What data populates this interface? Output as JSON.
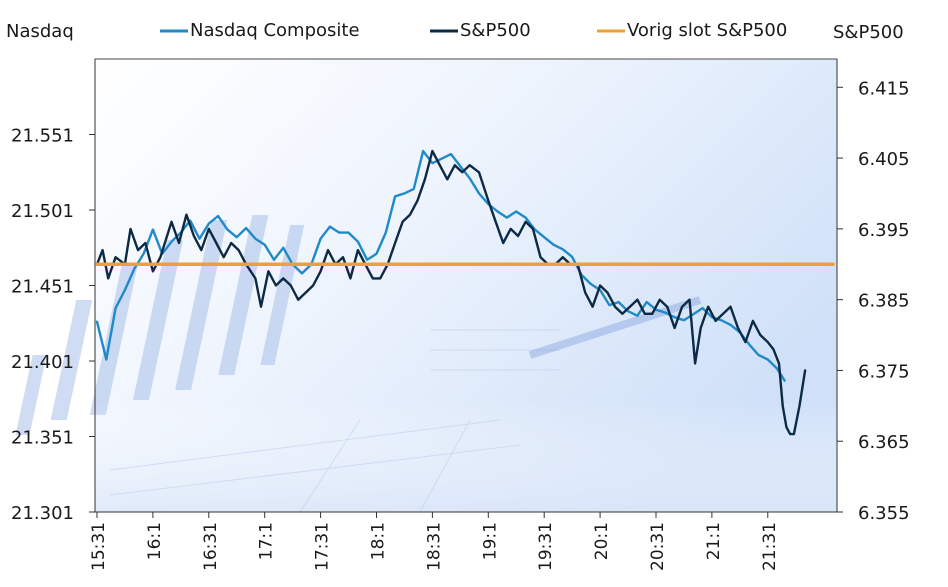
{
  "chart_data": {
    "type": "line",
    "left_axis_label": "Nasdaq",
    "right_axis_label": "S&P500",
    "x_ticks": [
      "15:31",
      "16:1",
      "16:31",
      "17:1",
      "17:31",
      "18:1",
      "18:31",
      "19:1",
      "19:31",
      "20:1",
      "20:31",
      "21:1",
      "21:31"
    ],
    "y_left_ticks": [
      "21.301",
      "21.351",
      "21.401",
      "21.451",
      "21.501",
      "21.551"
    ],
    "y_right_ticks": [
      "6.355",
      "6.365",
      "6.375",
      "6.385",
      "6.395",
      "6.405",
      "6.415"
    ],
    "y_left_range": [
      21301,
      21601
    ],
    "y_right_range": [
      6355,
      6419
    ],
    "x_range_minutes": [
      0,
      395
    ],
    "legend": [
      {
        "name": "Nasdaq Composite",
        "color": "#1f8ac8"
      },
      {
        "name": "S&P500",
        "color": "#0d2a45"
      },
      {
        "name": "Vorig slot S&P500",
        "color": "#f0a030"
      }
    ],
    "series": [
      {
        "name": "Nasdaq Composite",
        "axis": "left",
        "color": "#1f8ac8",
        "points": [
          [
            0,
            21427
          ],
          [
            5,
            21402
          ],
          [
            10,
            21436
          ],
          [
            15,
            21448
          ],
          [
            20,
            21462
          ],
          [
            25,
            21472
          ],
          [
            30,
            21488
          ],
          [
            35,
            21472
          ],
          [
            40,
            21480
          ],
          [
            45,
            21486
          ],
          [
            50,
            21494
          ],
          [
            55,
            21482
          ],
          [
            60,
            21492
          ],
          [
            65,
            21497
          ],
          [
            70,
            21488
          ],
          [
            75,
            21483
          ],
          [
            80,
            21489
          ],
          [
            85,
            21482
          ],
          [
            90,
            21478
          ],
          [
            95,
            21468
          ],
          [
            100,
            21476
          ],
          [
            105,
            21465
          ],
          [
            110,
            21459
          ],
          [
            115,
            21465
          ],
          [
            120,
            21482
          ],
          [
            125,
            21490
          ],
          [
            130,
            21486
          ],
          [
            135,
            21486
          ],
          [
            140,
            21480
          ],
          [
            145,
            21468
          ],
          [
            150,
            21472
          ],
          [
            155,
            21486
          ],
          [
            160,
            21510
          ],
          [
            165,
            21512
          ],
          [
            170,
            21515
          ],
          [
            175,
            21540
          ],
          [
            180,
            21532
          ],
          [
            185,
            21535
          ],
          [
            190,
            21538
          ],
          [
            195,
            21530
          ],
          [
            200,
            21522
          ],
          [
            205,
            21512
          ],
          [
            210,
            21505
          ],
          [
            215,
            21500
          ],
          [
            220,
            21496
          ],
          [
            225,
            21500
          ],
          [
            230,
            21496
          ],
          [
            235,
            21488
          ],
          [
            240,
            21483
          ],
          [
            245,
            21478
          ],
          [
            250,
            21475
          ],
          [
            255,
            21470
          ],
          [
            260,
            21458
          ],
          [
            265,
            21452
          ],
          [
            270,
            21448
          ],
          [
            275,
            21438
          ],
          [
            280,
            21440
          ],
          [
            285,
            21434
          ],
          [
            290,
            21431
          ],
          [
            295,
            21440
          ],
          [
            300,
            21435
          ],
          [
            305,
            21433
          ],
          [
            310,
            21430
          ],
          [
            315,
            21428
          ],
          [
            320,
            21432
          ],
          [
            325,
            21436
          ],
          [
            330,
            21430
          ],
          [
            335,
            21428
          ],
          [
            340,
            21425
          ],
          [
            345,
            21420
          ],
          [
            350,
            21412
          ],
          [
            355,
            21405
          ],
          [
            360,
            21402
          ],
          [
            365,
            21396
          ],
          [
            369,
            21388
          ]
        ]
      },
      {
        "name": "S&P500",
        "axis": "right",
        "color": "#0d2a45",
        "points": [
          [
            0,
            6390
          ],
          [
            3,
            6392
          ],
          [
            6,
            6388
          ],
          [
            10,
            6391
          ],
          [
            15,
            6390
          ],
          [
            18,
            6395
          ],
          [
            22,
            6392
          ],
          [
            26,
            6393
          ],
          [
            30,
            6389
          ],
          [
            34,
            6391
          ],
          [
            40,
            6396
          ],
          [
            44,
            6393
          ],
          [
            48,
            6397
          ],
          [
            52,
            6394
          ],
          [
            56,
            6392
          ],
          [
            60,
            6395
          ],
          [
            64,
            6393
          ],
          [
            68,
            6391
          ],
          [
            72,
            6393
          ],
          [
            76,
            6392
          ],
          [
            80,
            6390
          ],
          [
            85,
            6388
          ],
          [
            88,
            6384
          ],
          [
            92,
            6389
          ],
          [
            96,
            6387
          ],
          [
            100,
            6388
          ],
          [
            104,
            6387
          ],
          [
            108,
            6385
          ],
          [
            112,
            6386
          ],
          [
            116,
            6387
          ],
          [
            120,
            6389
          ],
          [
            124,
            6392
          ],
          [
            128,
            6390
          ],
          [
            132,
            6391
          ],
          [
            136,
            6388
          ],
          [
            140,
            6392
          ],
          [
            144,
            6390
          ],
          [
            148,
            6388
          ],
          [
            152,
            6388
          ],
          [
            156,
            6390
          ],
          [
            160,
            6393
          ],
          [
            164,
            6396
          ],
          [
            168,
            6397
          ],
          [
            172,
            6399
          ],
          [
            176,
            6402
          ],
          [
            180,
            6406
          ],
          [
            184,
            6404
          ],
          [
            188,
            6402
          ],
          [
            192,
            6404
          ],
          [
            196,
            6403
          ],
          [
            200,
            6404
          ],
          [
            205,
            6403
          ],
          [
            210,
            6399
          ],
          [
            214,
            6396
          ],
          [
            218,
            6393
          ],
          [
            222,
            6395
          ],
          [
            226,
            6394
          ],
          [
            230,
            6396
          ],
          [
            234,
            6395
          ],
          [
            238,
            6391
          ],
          [
            242,
            6390
          ],
          [
            246,
            6390
          ],
          [
            250,
            6391
          ],
          [
            254,
            6390
          ],
          [
            258,
            6390
          ],
          [
            262,
            6386
          ],
          [
            266,
            6384
          ],
          [
            270,
            6387
          ],
          [
            274,
            6386
          ],
          [
            278,
            6384
          ],
          [
            282,
            6383
          ],
          [
            286,
            6384
          ],
          [
            290,
            6385
          ],
          [
            294,
            6383
          ],
          [
            298,
            6383
          ],
          [
            302,
            6385
          ],
          [
            306,
            6384
          ],
          [
            310,
            6381
          ],
          [
            314,
            6384
          ],
          [
            318,
            6385
          ],
          [
            321,
            6376
          ],
          [
            324,
            6381
          ],
          [
            328,
            6384
          ],
          [
            332,
            6382
          ],
          [
            336,
            6383
          ],
          [
            340,
            6384
          ],
          [
            344,
            6381
          ],
          [
            348,
            6379
          ],
          [
            352,
            6382
          ],
          [
            356,
            6380
          ],
          [
            360,
            6379
          ],
          [
            363,
            6378
          ],
          [
            366,
            6376
          ],
          [
            368,
            6370
          ],
          [
            370,
            6367
          ],
          [
            372,
            6366
          ],
          [
            374,
            6366
          ],
          [
            377,
            6370
          ],
          [
            380,
            6375
          ]
        ]
      },
      {
        "name": "Vorig slot S&P500",
        "axis": "right",
        "color": "#f0a030",
        "points": [
          [
            0,
            6390
          ],
          [
            395,
            6390
          ]
        ]
      }
    ]
  }
}
